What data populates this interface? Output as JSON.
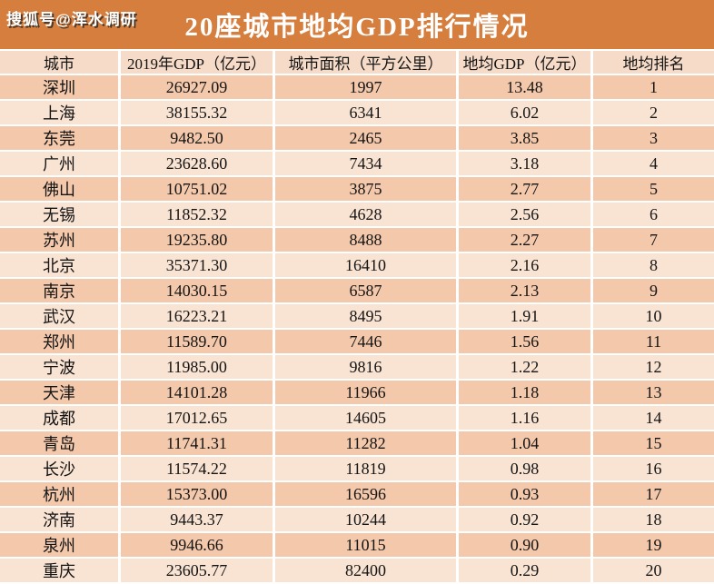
{
  "watermark": "搜狐号@浑水调研",
  "title": "20座城市地均GDP排行情况",
  "colors": {
    "title_bar_bg": "#D67E3E",
    "title_text": "#ffffff",
    "header_row_bg": "#F6DCC8",
    "row_odd_bg": "#F3C8AB",
    "row_even_bg": "#F9E3D3",
    "grid_line": "#ffffff",
    "body_text": "#141414"
  },
  "chart_data": {
    "type": "table",
    "title": "20座城市地均GDP排行情况",
    "columns": [
      "城市",
      "2019年GDP（亿元）",
      "城市面积（平方公里）",
      "地均GDP（亿元）",
      "地均排名"
    ],
    "column_keys": [
      "city",
      "gdp-2019",
      "area",
      "gdp-per-area",
      "rank"
    ],
    "rows": [
      [
        "深圳",
        "26927.09",
        "1997",
        "13.48",
        "1"
      ],
      [
        "上海",
        "38155.32",
        "6341",
        "6.02",
        "2"
      ],
      [
        "东莞",
        "9482.50",
        "2465",
        "3.85",
        "3"
      ],
      [
        "广州",
        "23628.60",
        "7434",
        "3.18",
        "4"
      ],
      [
        "佛山",
        "10751.02",
        "3875",
        "2.77",
        "5"
      ],
      [
        "无锡",
        "11852.32",
        "4628",
        "2.56",
        "6"
      ],
      [
        "苏州",
        "19235.80",
        "8488",
        "2.27",
        "7"
      ],
      [
        "北京",
        "35371.30",
        "16410",
        "2.16",
        "8"
      ],
      [
        "南京",
        "14030.15",
        "6587",
        "2.13",
        "9"
      ],
      [
        "武汉",
        "16223.21",
        "8495",
        "1.91",
        "10"
      ],
      [
        "郑州",
        "11589.70",
        "7446",
        "1.56",
        "11"
      ],
      [
        "宁波",
        "11985.00",
        "9816",
        "1.22",
        "12"
      ],
      [
        "天津",
        "14101.28",
        "11966",
        "1.18",
        "13"
      ],
      [
        "成都",
        "17012.65",
        "14605",
        "1.16",
        "14"
      ],
      [
        "青岛",
        "11741.31",
        "11282",
        "1.04",
        "15"
      ],
      [
        "长沙",
        "11574.22",
        "11819",
        "0.98",
        "16"
      ],
      [
        "杭州",
        "15373.00",
        "16596",
        "0.93",
        "17"
      ],
      [
        "济南",
        "9443.37",
        "10244",
        "0.92",
        "18"
      ],
      [
        "泉州",
        "9946.66",
        "11015",
        "0.90",
        "19"
      ],
      [
        "重庆",
        "23605.77",
        "82400",
        "0.29",
        "20"
      ]
    ]
  }
}
